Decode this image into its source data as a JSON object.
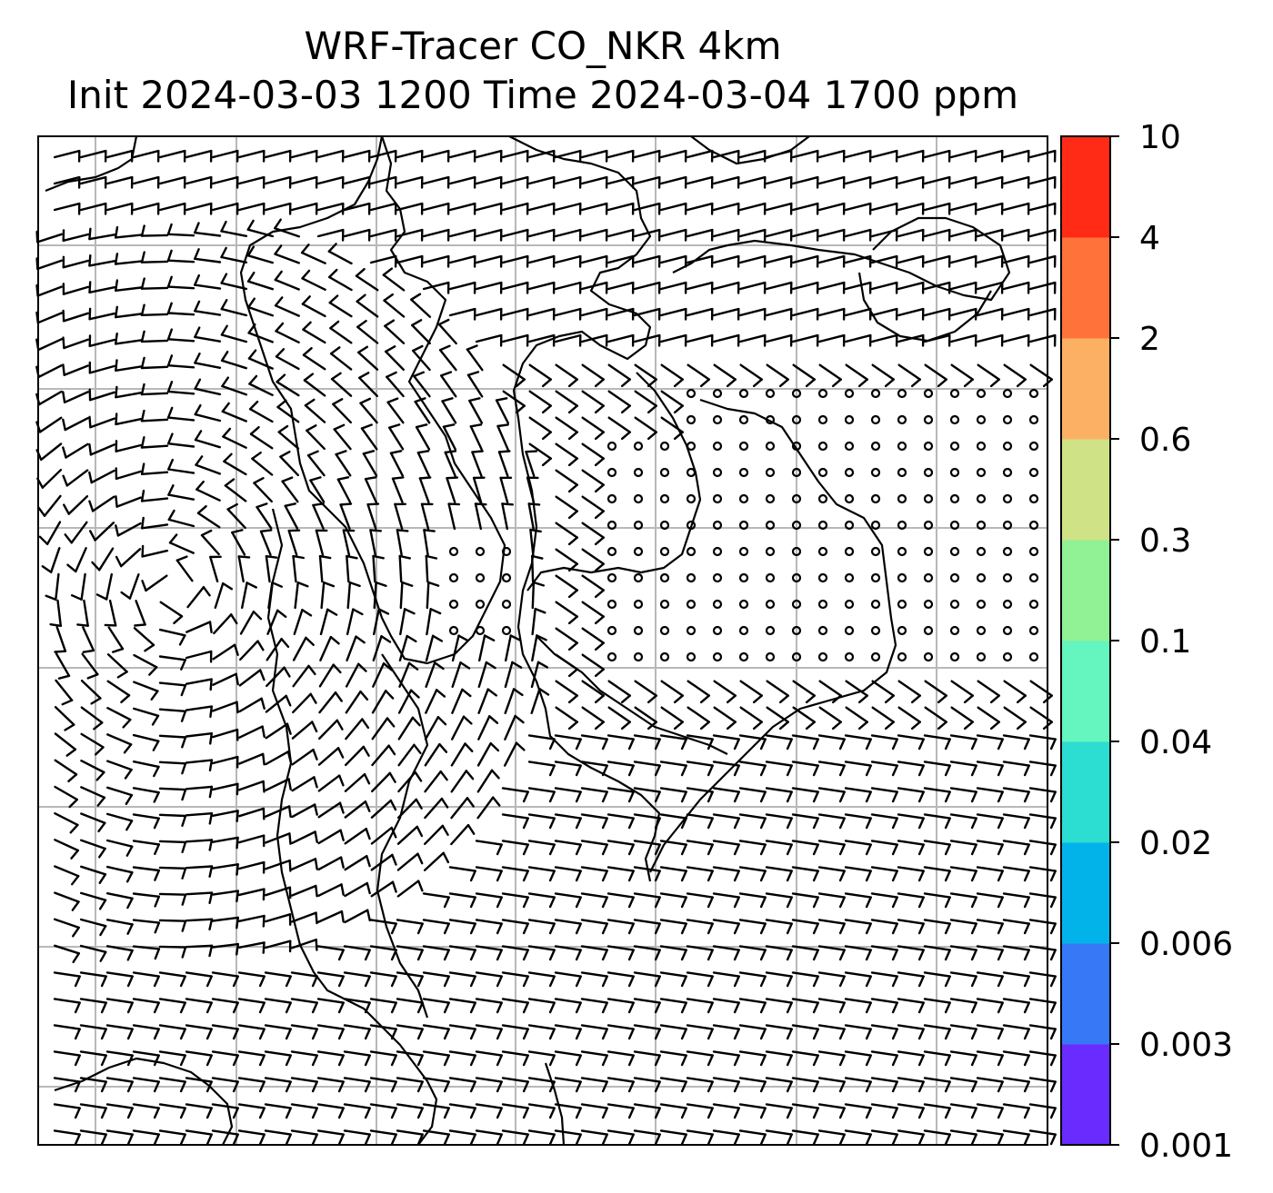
{
  "title": {
    "line1": "WRF-Tracer CO_NKR 4km",
    "line2": "Init 2024-03-03 1200 Time 2024-03-04 1700 ppm"
  },
  "chart_data": {
    "type": "contour-map-with-wind-barbs",
    "title": "WRF-Tracer CO_NKR 4km",
    "subtitle": "Init 2024-03-03 1200 Time 2024-03-04 1700 ppm",
    "variable": "CO_NKR tracer",
    "unit": "ppm",
    "grid": true,
    "gridlines": {
      "vertical_count": 7,
      "horizontal_count": 7
    },
    "wind_barbs": true,
    "filled_contours_visible": false,
    "colorbar": {
      "orientation": "vertical",
      "position": "right",
      "levels": [
        "0.001",
        "0.003",
        "0.006",
        "0.02",
        "0.04",
        "0.1",
        "0.3",
        "0.6",
        "2",
        "4",
        "10"
      ],
      "colors": [
        "#6a2bff",
        "#3678f5",
        "#02b3ea",
        "#2cddd1",
        "#65f5be",
        "#90f195",
        "#cfe286",
        "#fcb063",
        "#ff733a",
        "#ff2b17"
      ]
    }
  }
}
